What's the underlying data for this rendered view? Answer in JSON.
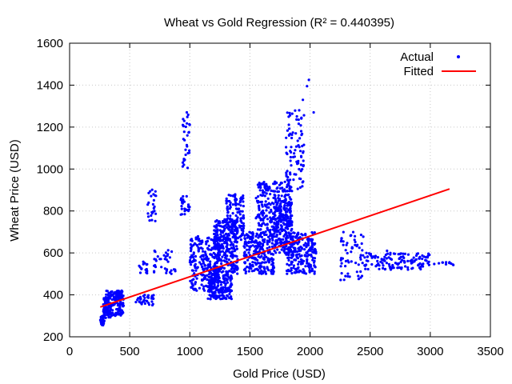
{
  "chart_data": {
    "type": "scatter",
    "title": "Wheat vs Gold Regression (R² = 0.440395)",
    "xlabel": "Gold Price (USD)",
    "ylabel": "Wheat Price (USD)",
    "xlim": [
      0,
      3500
    ],
    "ylim": [
      200,
      1600
    ],
    "xticks": [
      0,
      500,
      1000,
      1500,
      2000,
      2500,
      3000,
      3500
    ],
    "yticks": [
      200,
      400,
      600,
      800,
      1000,
      1200,
      1400,
      1600
    ],
    "grid": true,
    "legend_position": "top-right",
    "series": [
      {
        "name": "Actual",
        "type": "scatter",
        "color": "#0000ff",
        "clusters": [
          {
            "x": [
              255,
              290
            ],
            "y": [
              255,
              300
            ],
            "n": 40
          },
          {
            "x": [
              280,
              340
            ],
            "y": [
              290,
              390
            ],
            "n": 70
          },
          {
            "x": [
              300,
              450
            ],
            "y": [
              300,
              420
            ],
            "n": 140
          },
          {
            "x": [
              380,
              440
            ],
            "y": [
              380,
              420
            ],
            "n": 30
          },
          {
            "x": [
              550,
              700
            ],
            "y": [
              350,
              400
            ],
            "n": 40
          },
          {
            "x": [
              570,
              650
            ],
            "y": [
              500,
              560
            ],
            "n": 15
          },
          {
            "x": [
              650,
              720
            ],
            "y": [
              750,
              920
            ],
            "n": 25
          },
          {
            "x": [
              700,
              900
            ],
            "y": [
              500,
              620
            ],
            "n": 35
          },
          {
            "x": [
              920,
              1000
            ],
            "y": [
              780,
              880
            ],
            "n": 25
          },
          {
            "x": [
              940,
              1000
            ],
            "y": [
              1000,
              1270
            ],
            "n": 30
          },
          {
            "x": [
              1000,
              1250
            ],
            "y": [
              420,
              680
            ],
            "n": 250
          },
          {
            "x": [
              1150,
              1350
            ],
            "y": [
              380,
              500
            ],
            "n": 180
          },
          {
            "x": [
              1200,
              1400
            ],
            "y": [
              500,
              760
            ],
            "n": 300
          },
          {
            "x": [
              1300,
              1450
            ],
            "y": [
              650,
              880
            ],
            "n": 120
          },
          {
            "x": [
              1450,
              1700
            ],
            "y": [
              500,
              700
            ],
            "n": 250
          },
          {
            "x": [
              1550,
              1850
            ],
            "y": [
              700,
              940
            ],
            "n": 250
          },
          {
            "x": [
              1700,
              1850
            ],
            "y": [
              600,
              850
            ],
            "n": 200
          },
          {
            "x": [
              1800,
              1950
            ],
            "y": [
              900,
              1280
            ],
            "n": 90
          },
          {
            "x": [
              1800,
              2050
            ],
            "y": [
              500,
              700
            ],
            "n": 220
          },
          {
            "x": [
              2250,
              2450
            ],
            "y": [
              470,
              700
            ],
            "n": 60
          },
          {
            "x": [
              2450,
              3000
            ],
            "y": [
              520,
              600
            ],
            "n": 130
          },
          {
            "x": [
              3000,
              3200
            ],
            "y": [
              540,
              560
            ],
            "n": 10
          }
        ],
        "highlights": [
          {
            "x": 1990,
            "y": 1425
          },
          {
            "x": 1975,
            "y": 1395
          },
          {
            "x": 1940,
            "y": 1330
          },
          {
            "x": 2030,
            "y": 1270
          },
          {
            "x": 975,
            "y": 1270
          },
          {
            "x": 3160,
            "y": 555
          },
          {
            "x": 2640,
            "y": 610
          }
        ]
      },
      {
        "name": "Fitted",
        "type": "line",
        "color": "#ff0000",
        "x": [
          255,
          3160
        ],
        "y": [
          342,
          905
        ]
      }
    ]
  }
}
